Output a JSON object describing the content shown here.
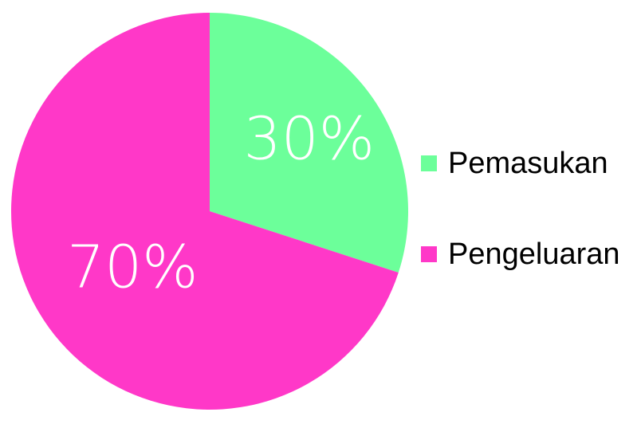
{
  "chart_data": {
    "type": "pie",
    "title": "",
    "slices": [
      {
        "name": "Pemasukan",
        "value": 30,
        "label": "30%",
        "color": "#6CFF9A"
      },
      {
        "name": "Pengeluaran",
        "value": 70,
        "label": "70%",
        "color": "#FF38C8"
      }
    ],
    "start_angle_deg": 0,
    "direction": "clockwise",
    "legend_position": "right"
  },
  "legend": {
    "items": [
      {
        "label": "Pemasukan",
        "color": "#6CFF9A"
      },
      {
        "label": "Pengeluaran",
        "color": "#FF38C8"
      }
    ]
  }
}
